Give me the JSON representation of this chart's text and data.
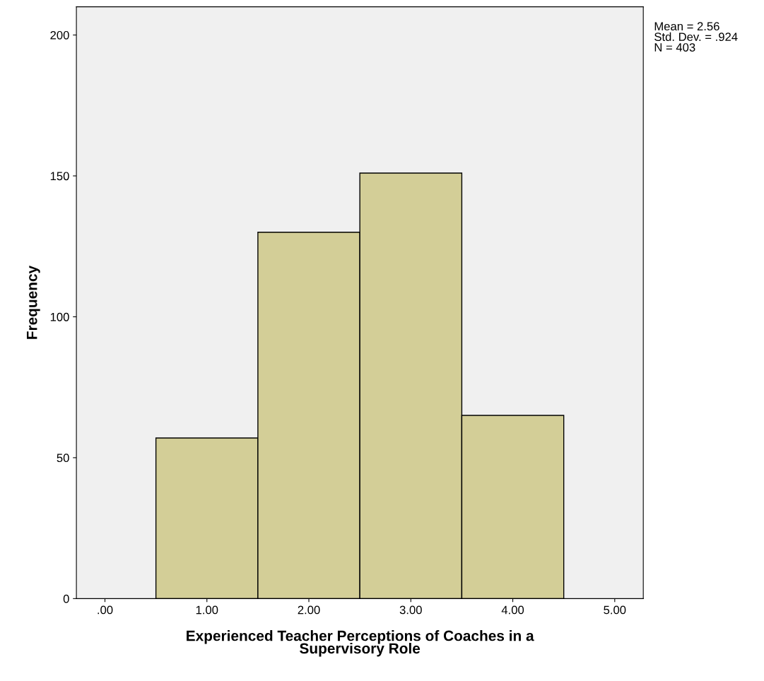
{
  "chart_data": {
    "type": "histogram",
    "bins": [
      0.5,
      1.5,
      2.5,
      3.5,
      4.5
    ],
    "values": [
      57,
      130,
      151,
      65
    ],
    "color": "#d3ce97",
    "xlabel": "Experienced Teacher Perceptions of Coaches in a\nSupervisory Role",
    "ylabel": "Frequency",
    "xlim": [
      -0.28,
      5.28
    ],
    "ylim": [
      0,
      210
    ],
    "xticks": [
      {
        "value": 0,
        "label": ".00"
      },
      {
        "value": 1,
        "label": "1.00"
      },
      {
        "value": 2,
        "label": "2.00"
      },
      {
        "value": 3,
        "label": "3.00"
      },
      {
        "value": 4,
        "label": "4.00"
      },
      {
        "value": 5,
        "label": "5.00"
      }
    ],
    "yticks": [
      0,
      50,
      100,
      150,
      200
    ],
    "annotations": [
      "Mean = 2.56",
      "Std. Dev. = .924",
      "N = 403"
    ],
    "grid": false,
    "legend": false
  }
}
